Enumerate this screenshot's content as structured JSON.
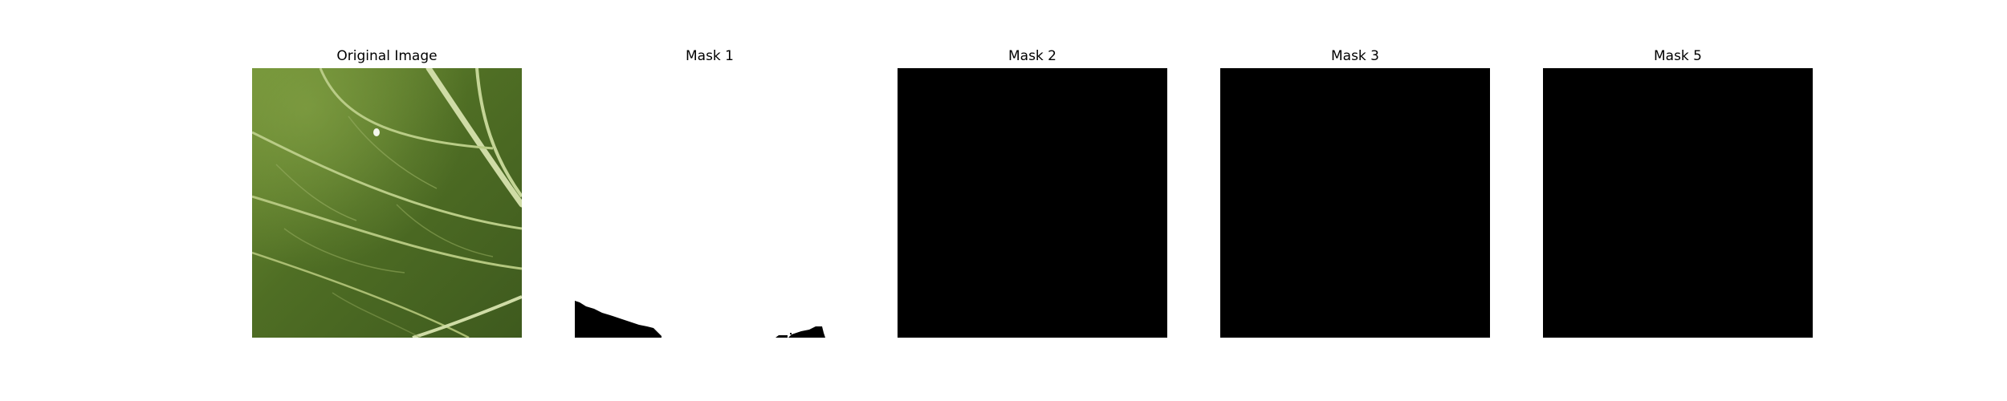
{
  "figure": {
    "panels": [
      {
        "title": "Original Image",
        "kind": "leaf-photo"
      },
      {
        "title": "Mask 1",
        "kind": "mask-mostly-white"
      },
      {
        "title": "Mask 2",
        "kind": "mask-black"
      },
      {
        "title": "Mask 3",
        "kind": "mask-black"
      },
      {
        "title": "Mask 5",
        "kind": "mask-black"
      }
    ]
  },
  "colors": {
    "background": "#ffffff",
    "mask_on": "#ffffff",
    "mask_off": "#000000",
    "leaf_dark": "#3e5a1e",
    "leaf_mid": "#5a7a2c",
    "leaf_light": "#7a9a3e",
    "vein": "#c9d9a0"
  }
}
